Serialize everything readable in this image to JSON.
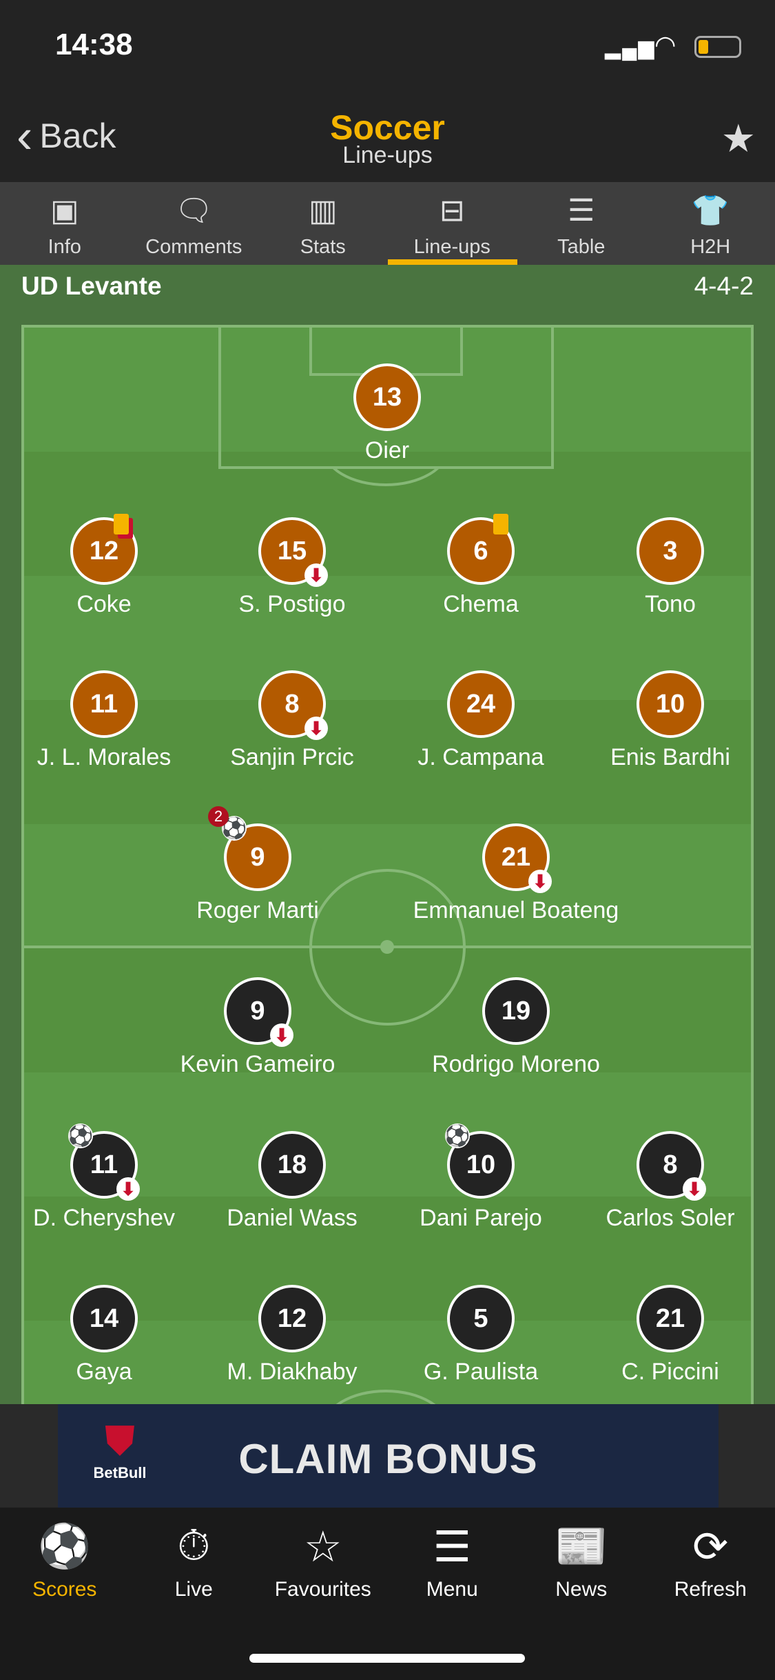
{
  "status": {
    "time": "14:38",
    "battery_level": 0.25
  },
  "header": {
    "back_label": "Back",
    "title": "Soccer",
    "subtitle": "Line-ups",
    "star_icon": "star-icon"
  },
  "tabs": [
    {
      "label": "Info",
      "icon": "scoreboard-icon",
      "glyph": "▣"
    },
    {
      "label": "Comments",
      "icon": "comment-icon",
      "glyph": "🗨"
    },
    {
      "label": "Stats",
      "icon": "bar-chart-icon",
      "glyph": "▥"
    },
    {
      "label": "Line-ups",
      "icon": "pitch-icon",
      "glyph": "⊟",
      "active": true
    },
    {
      "label": "Table",
      "icon": "list-icon",
      "glyph": "☰"
    },
    {
      "label": "H2H",
      "icon": "shirt-icon",
      "glyph": "👕"
    }
  ],
  "team": {
    "name": "UD Levante",
    "formation": "4-4-2"
  },
  "colors": {
    "home": "#b35a00",
    "away": "#232323",
    "accent": "#f5b400"
  },
  "players": [
    {
      "num": "13",
      "name": "Oier",
      "team": "home",
      "row": 0,
      "col": "c"
    },
    {
      "num": "12",
      "name": "Coke",
      "team": "home",
      "row": 1,
      "col": 0,
      "card": "yellow-red"
    },
    {
      "num": "15",
      "name": "S. Postigo",
      "team": "home",
      "row": 1,
      "col": 1,
      "sub": true
    },
    {
      "num": "6",
      "name": "Chema",
      "team": "home",
      "row": 1,
      "col": 2,
      "card": "yellow"
    },
    {
      "num": "3",
      "name": "Tono",
      "team": "home",
      "row": 1,
      "col": 3
    },
    {
      "num": "11",
      "name": "J. L. Morales",
      "team": "home",
      "row": 2,
      "col": 0
    },
    {
      "num": "8",
      "name": "Sanjin Prcic",
      "team": "home",
      "row": 2,
      "col": 1,
      "sub": true
    },
    {
      "num": "24",
      "name": "J. Campana",
      "team": "home",
      "row": 2,
      "col": 2
    },
    {
      "num": "10",
      "name": "Enis Bardhi",
      "team": "home",
      "row": 2,
      "col": 3
    },
    {
      "num": "9",
      "name": "Roger Marti",
      "team": "home",
      "row": 3,
      "col": "l2",
      "goals": "2"
    },
    {
      "num": "21",
      "name": "Emmanuel Boateng",
      "team": "home",
      "row": 3,
      "col": "r2",
      "sub": true
    },
    {
      "num": "9",
      "name": "Kevin Gameiro",
      "team": "away",
      "row": 4,
      "col": "l2",
      "sub": true
    },
    {
      "num": "19",
      "name": "Rodrigo Moreno",
      "team": "away",
      "row": 4,
      "col": "r2"
    },
    {
      "num": "11",
      "name": "D. Cheryshev",
      "team": "away",
      "row": 5,
      "col": 0,
      "sub": true,
      "goal": true
    },
    {
      "num": "18",
      "name": "Daniel Wass",
      "team": "away",
      "row": 5,
      "col": 1
    },
    {
      "num": "10",
      "name": "Dani Parejo",
      "team": "away",
      "row": 5,
      "col": 2,
      "goal": true
    },
    {
      "num": "8",
      "name": "Carlos Soler",
      "team": "away",
      "row": 5,
      "col": 3,
      "sub": true
    },
    {
      "num": "14",
      "name": "Gaya",
      "team": "away",
      "row": 6,
      "col": 0
    },
    {
      "num": "12",
      "name": "M. Diakhaby",
      "team": "away",
      "row": 6,
      "col": 1
    },
    {
      "num": "5",
      "name": "G. Paulista",
      "team": "away",
      "row": 6,
      "col": 2
    },
    {
      "num": "21",
      "name": "C. Piccini",
      "team": "away",
      "row": 6,
      "col": 3
    }
  ],
  "ad": {
    "brand": "BetBull",
    "text": "CLAIM BONUS"
  },
  "bottom_nav": [
    {
      "label": "Scores",
      "icon": "soccer-ball-icon",
      "glyph": "⚽",
      "active": true
    },
    {
      "label": "Live",
      "icon": "stopwatch-icon",
      "glyph": "⏱"
    },
    {
      "label": "Favourites",
      "icon": "star-ball-icon",
      "glyph": "☆"
    },
    {
      "label": "Menu",
      "icon": "menu-icon",
      "glyph": "☰"
    },
    {
      "label": "News",
      "icon": "newspaper-icon",
      "glyph": "📰"
    },
    {
      "label": "Refresh",
      "icon": "refresh-icon",
      "glyph": "⟳"
    }
  ]
}
